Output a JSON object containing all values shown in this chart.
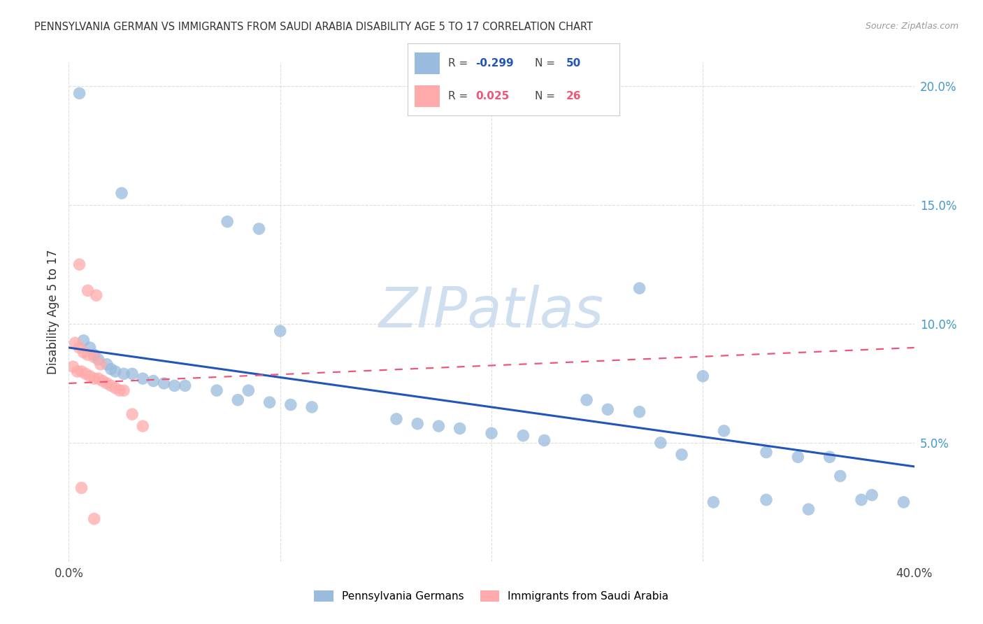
{
  "title": "PENNSYLVANIA GERMAN VS IMMIGRANTS FROM SAUDI ARABIA DISABILITY AGE 5 TO 17 CORRELATION CHART",
  "source": "Source: ZipAtlas.com",
  "ylabel": "Disability Age 5 to 17",
  "xmin": 0.0,
  "xmax": 0.4,
  "ymin": 0.0,
  "ymax": 0.21,
  "right_ytick_vals": [
    0.05,
    0.1,
    0.15,
    0.2
  ],
  "right_ytick_labels": [
    "5.0%",
    "10.0%",
    "15.0%",
    "20.0%"
  ],
  "watermark": "ZIPatlas",
  "blue_scatter_x": [
    0.005,
    0.025,
    0.075,
    0.09,
    0.1,
    0.007,
    0.01,
    0.012,
    0.014,
    0.018,
    0.02,
    0.022,
    0.026,
    0.03,
    0.035,
    0.04,
    0.045,
    0.05,
    0.055,
    0.07,
    0.08,
    0.085,
    0.095,
    0.105,
    0.115,
    0.155,
    0.165,
    0.175,
    0.185,
    0.2,
    0.215,
    0.225,
    0.245,
    0.255,
    0.27,
    0.27,
    0.3,
    0.31,
    0.33,
    0.345,
    0.36,
    0.365,
    0.375,
    0.28,
    0.29,
    0.305,
    0.33,
    0.35,
    0.38,
    0.395
  ],
  "blue_scatter_y": [
    0.197,
    0.155,
    0.143,
    0.14,
    0.097,
    0.093,
    0.09,
    0.087,
    0.085,
    0.083,
    0.081,
    0.08,
    0.079,
    0.079,
    0.077,
    0.076,
    0.075,
    0.074,
    0.074,
    0.072,
    0.068,
    0.072,
    0.067,
    0.066,
    0.065,
    0.06,
    0.058,
    0.057,
    0.056,
    0.054,
    0.053,
    0.051,
    0.068,
    0.064,
    0.063,
    0.115,
    0.078,
    0.055,
    0.046,
    0.044,
    0.044,
    0.036,
    0.026,
    0.05,
    0.045,
    0.025,
    0.026,
    0.022,
    0.028,
    0.025
  ],
  "pink_scatter_x": [
    0.005,
    0.009,
    0.013,
    0.003,
    0.005,
    0.007,
    0.009,
    0.012,
    0.015,
    0.002,
    0.004,
    0.006,
    0.008,
    0.01,
    0.012,
    0.014,
    0.016,
    0.018,
    0.02,
    0.022,
    0.024,
    0.026,
    0.03,
    0.035,
    0.006,
    0.012
  ],
  "pink_scatter_y": [
    0.125,
    0.114,
    0.112,
    0.092,
    0.09,
    0.088,
    0.087,
    0.086,
    0.083,
    0.082,
    0.08,
    0.08,
    0.079,
    0.078,
    0.077,
    0.077,
    0.076,
    0.075,
    0.074,
    0.073,
    0.072,
    0.072,
    0.062,
    0.057,
    0.031,
    0.018
  ],
  "blue_line_x": [
    0.0,
    0.4
  ],
  "blue_line_y": [
    0.09,
    0.04
  ],
  "pink_line_x": [
    0.0,
    0.4
  ],
  "pink_line_y": [
    0.075,
    0.09
  ],
  "blue_scatter_color": "#99BBDD",
  "pink_scatter_color": "#FFAAAA",
  "blue_line_color": "#2255BB",
  "pink_line_color": "#EE5577",
  "background_color": "#FFFFFF",
  "grid_color": "#DDDDDD",
  "title_color": "#333333",
  "watermark_color": "#D0DFF0",
  "right_axis_color": "#4499CC",
  "legend_blue_r": "-0.299",
  "legend_blue_n": "50",
  "legend_pink_r": "0.025",
  "legend_pink_n": "26"
}
